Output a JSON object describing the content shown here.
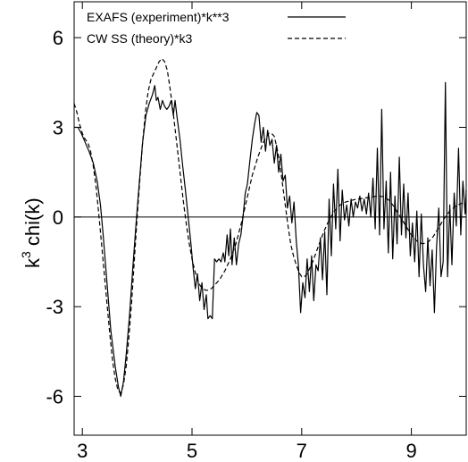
{
  "chart_data": {
    "type": "line",
    "title": "",
    "xlabel": "",
    "ylabel": "k",
    "ylabel_sup": "3",
    "ylabel_rest": " chi(k)",
    "xlim": [
      2.85,
      10
    ],
    "ylim": [
      -7.3,
      7.2
    ],
    "xticks": [
      3,
      5,
      7,
      9
    ],
    "yticks": [
      6,
      3,
      0,
      -3,
      -6
    ],
    "xtick_labels": [
      "3",
      "5",
      "7",
      "9"
    ],
    "ytick_labels": [
      "6",
      "3",
      "0",
      "-3",
      "-6"
    ],
    "zero_line": true,
    "grid": false,
    "legend_position": "top",
    "series": [
      {
        "name": "EXAFS (experiment)*k**3",
        "style": "solid",
        "color": "#000000",
        "points": [
          [
            2.85,
            3.0
          ],
          [
            2.92,
            3.0
          ],
          [
            2.98,
            2.8
          ],
          [
            3.05,
            2.5
          ],
          [
            3.12,
            2.2
          ],
          [
            3.2,
            1.8
          ],
          [
            3.27,
            1.2
          ],
          [
            3.33,
            0.4
          ],
          [
            3.38,
            -0.6
          ],
          [
            3.45,
            -2.2
          ],
          [
            3.52,
            -3.8
          ],
          [
            3.6,
            -5.0
          ],
          [
            3.66,
            -5.7
          ],
          [
            3.7,
            -6.0
          ],
          [
            3.75,
            -5.5
          ],
          [
            3.8,
            -4.6
          ],
          [
            3.86,
            -3.3
          ],
          [
            3.92,
            -1.7
          ],
          [
            3.98,
            -0.2
          ],
          [
            4.04,
            1.2
          ],
          [
            4.1,
            2.5
          ],
          [
            4.16,
            3.4
          ],
          [
            4.22,
            3.8
          ],
          [
            4.28,
            4.1
          ],
          [
            4.32,
            4.4
          ],
          [
            4.35,
            3.9
          ],
          [
            4.38,
            4.0
          ],
          [
            4.42,
            3.6
          ],
          [
            4.46,
            3.9
          ],
          [
            4.5,
            3.7
          ],
          [
            4.54,
            3.6
          ],
          [
            4.58,
            3.7
          ],
          [
            4.62,
            3.9
          ],
          [
            4.66,
            3.4
          ],
          [
            4.69,
            3.9
          ],
          [
            4.73,
            3.3
          ],
          [
            4.78,
            2.6
          ],
          [
            4.83,
            1.7
          ],
          [
            4.88,
            0.9
          ],
          [
            4.93,
            0.0
          ],
          [
            4.98,
            -0.9
          ],
          [
            5.02,
            -1.7
          ],
          [
            5.06,
            -2.4
          ],
          [
            5.1,
            -1.9
          ],
          [
            5.14,
            -2.8
          ],
          [
            5.18,
            -2.2
          ],
          [
            5.22,
            -3.1
          ],
          [
            5.26,
            -2.6
          ],
          [
            5.29,
            -3.4
          ],
          [
            5.33,
            -3.3
          ],
          [
            5.37,
            -3.4
          ],
          [
            5.41,
            -1.4
          ],
          [
            5.45,
            -1.5
          ],
          [
            5.49,
            -1.4
          ],
          [
            5.53,
            -1.5
          ],
          [
            5.57,
            -1.2
          ],
          [
            5.6,
            -1.5
          ],
          [
            5.64,
            -0.6
          ],
          [
            5.67,
            -1.3
          ],
          [
            5.7,
            -0.4
          ],
          [
            5.73,
            -1.6
          ],
          [
            5.77,
            -0.7
          ],
          [
            5.81,
            -1.6
          ],
          [
            5.85,
            -0.9
          ],
          [
            5.89,
            -0.6
          ],
          [
            5.93,
            0.0
          ],
          [
            5.97,
            0.8
          ],
          [
            6.01,
            1.1
          ],
          [
            6.05,
            1.8
          ],
          [
            6.1,
            2.6
          ],
          [
            6.14,
            3.1
          ],
          [
            6.18,
            3.5
          ],
          [
            6.22,
            3.4
          ],
          [
            6.26,
            2.5
          ],
          [
            6.3,
            3.0
          ],
          [
            6.34,
            2.2
          ],
          [
            6.38,
            2.9
          ],
          [
            6.42,
            2.4
          ],
          [
            6.46,
            2.6
          ],
          [
            6.5,
            1.8
          ],
          [
            6.54,
            2.4
          ],
          [
            6.58,
            1.5
          ],
          [
            6.62,
            2.1
          ],
          [
            6.66,
            1.2
          ],
          [
            6.7,
            1.4
          ],
          [
            6.74,
            0.3
          ],
          [
            6.78,
            0.7
          ],
          [
            6.82,
            -0.2
          ],
          [
            6.86,
            0.5
          ],
          [
            6.9,
            -0.8
          ],
          [
            6.94,
            -1.6
          ],
          [
            6.98,
            -3.2
          ],
          [
            7.02,
            -2.2
          ],
          [
            7.06,
            -2.7
          ],
          [
            7.1,
            -1.4
          ],
          [
            7.14,
            -2.5
          ],
          [
            7.18,
            -1.3
          ],
          [
            7.22,
            -2.8
          ],
          [
            7.26,
            -1.6
          ],
          [
            7.3,
            -1.8
          ],
          [
            7.34,
            -0.7
          ],
          [
            7.38,
            -2.1
          ],
          [
            7.42,
            -0.5
          ],
          [
            7.46,
            -2.6
          ],
          [
            7.5,
            0.6
          ],
          [
            7.54,
            -1.3
          ],
          [
            7.58,
            1.1
          ],
          [
            7.62,
            -0.4
          ],
          [
            7.66,
            1.6
          ],
          [
            7.7,
            -0.8
          ],
          [
            7.74,
            0.9
          ],
          [
            7.78,
            -0.1
          ],
          [
            7.82,
            0.4
          ],
          [
            7.86,
            -0.3
          ],
          [
            7.9,
            0.6
          ],
          [
            7.94,
            0.0
          ],
          [
            7.98,
            0.5
          ],
          [
            8.02,
            0.3
          ],
          [
            8.06,
            0.7
          ],
          [
            8.1,
            0.2
          ],
          [
            8.14,
            0.6
          ],
          [
            8.18,
            0.1
          ],
          [
            8.22,
            0.8
          ],
          [
            8.26,
            0.0
          ],
          [
            8.3,
            1.3
          ],
          [
            8.34,
            -0.4
          ],
          [
            8.38,
            2.3
          ],
          [
            8.42,
            -0.6
          ],
          [
            8.46,
            3.6
          ],
          [
            8.5,
            -0.4
          ],
          [
            8.54,
            1.2
          ],
          [
            8.58,
            -1.2
          ],
          [
            8.62,
            1.5
          ],
          [
            8.66,
            -1.4
          ],
          [
            8.7,
            0.7
          ],
          [
            8.74,
            -0.9
          ],
          [
            8.78,
            2.0
          ],
          [
            8.82,
            -0.6
          ],
          [
            8.86,
            1.1
          ],
          [
            8.9,
            -0.7
          ],
          [
            8.94,
            0.8
          ],
          [
            8.98,
            -1.3
          ],
          [
            9.02,
            -0.2
          ],
          [
            9.06,
            -1.5
          ],
          [
            9.1,
            0.2
          ],
          [
            9.14,
            -2.0
          ],
          [
            9.18,
            0.1
          ],
          [
            9.22,
            -1.6
          ],
          [
            9.26,
            -2.5
          ],
          [
            9.3,
            -0.7
          ],
          [
            9.34,
            -2.3
          ],
          [
            9.38,
            -1.1
          ],
          [
            9.42,
            -3.2
          ],
          [
            9.46,
            -1.0
          ],
          [
            9.5,
            0.3
          ],
          [
            9.54,
            -2.0
          ],
          [
            9.58,
            -1.5
          ],
          [
            9.62,
            4.5
          ],
          [
            9.66,
            -2.0
          ],
          [
            9.7,
            0.4
          ],
          [
            9.74,
            -1.6
          ],
          [
            9.78,
            0.8
          ],
          [
            9.82,
            -0.3
          ],
          [
            9.86,
            2.3
          ],
          [
            9.9,
            -0.6
          ],
          [
            9.94,
            1.2
          ],
          [
            9.98,
            0.1
          ],
          [
            10.0,
            0.9
          ]
        ]
      },
      {
        "name": "CW SS (theory)*k3",
        "style": "dashed",
        "color": "#000000",
        "points": [
          [
            2.85,
            3.8
          ],
          [
            2.9,
            3.5
          ],
          [
            2.95,
            3.1
          ],
          [
            3.0,
            2.8
          ],
          [
            3.05,
            2.6
          ],
          [
            3.1,
            2.5
          ],
          [
            3.15,
            2.2
          ],
          [
            3.2,
            1.7
          ],
          [
            3.25,
            1.0
          ],
          [
            3.3,
            0.1
          ],
          [
            3.35,
            -0.9
          ],
          [
            3.4,
            -1.9
          ],
          [
            3.45,
            -2.9
          ],
          [
            3.5,
            -3.9
          ],
          [
            3.55,
            -4.8
          ],
          [
            3.6,
            -5.4
          ],
          [
            3.65,
            -5.8
          ],
          [
            3.7,
            -5.9
          ],
          [
            3.75,
            -5.6
          ],
          [
            3.8,
            -5.0
          ],
          [
            3.85,
            -4.0
          ],
          [
            3.9,
            -2.8
          ],
          [
            3.95,
            -1.4
          ],
          [
            4.0,
            0.0
          ],
          [
            4.05,
            1.3
          ],
          [
            4.1,
            2.5
          ],
          [
            4.15,
            3.5
          ],
          [
            4.2,
            4.2
          ],
          [
            4.25,
            4.6
          ],
          [
            4.3,
            4.8
          ],
          [
            4.35,
            5.0
          ],
          [
            4.4,
            5.2
          ],
          [
            4.45,
            5.3
          ],
          [
            4.5,
            5.2
          ],
          [
            4.55,
            4.9
          ],
          [
            4.6,
            4.3
          ],
          [
            4.65,
            3.6
          ],
          [
            4.7,
            2.8
          ],
          [
            4.75,
            2.0
          ],
          [
            4.8,
            1.2
          ],
          [
            4.85,
            0.4
          ],
          [
            4.9,
            -0.3
          ],
          [
            4.95,
            -0.9
          ],
          [
            5.0,
            -1.4
          ],
          [
            5.05,
            -1.8
          ],
          [
            5.1,
            -2.1
          ],
          [
            5.15,
            -2.3
          ],
          [
            5.2,
            -2.4
          ],
          [
            5.25,
            -2.45
          ],
          [
            5.3,
            -2.45
          ],
          [
            5.35,
            -2.4
          ],
          [
            5.4,
            -2.3
          ],
          [
            5.5,
            -2.1
          ],
          [
            5.6,
            -1.8
          ],
          [
            5.7,
            -1.4
          ],
          [
            5.8,
            -0.9
          ],
          [
            5.9,
            -0.2
          ],
          [
            6.0,
            0.6
          ],
          [
            6.1,
            1.4
          ],
          [
            6.2,
            2.0
          ],
          [
            6.3,
            2.5
          ],
          [
            6.4,
            2.8
          ],
          [
            6.45,
            2.8
          ],
          [
            6.5,
            2.7
          ],
          [
            6.55,
            2.3
          ],
          [
            6.6,
            1.8
          ],
          [
            6.65,
            1.1
          ],
          [
            6.7,
            0.4
          ],
          [
            6.75,
            -0.3
          ],
          [
            6.8,
            -0.9
          ],
          [
            6.85,
            -1.3
          ],
          [
            6.9,
            -1.6
          ],
          [
            6.95,
            -1.85
          ],
          [
            7.0,
            -2.0
          ],
          [
            7.05,
            -2.0
          ],
          [
            7.1,
            -1.9
          ],
          [
            7.2,
            -1.5
          ],
          [
            7.3,
            -1.0
          ],
          [
            7.4,
            -0.5
          ],
          [
            7.5,
            -0.1
          ],
          [
            7.6,
            0.2
          ],
          [
            7.7,
            0.4
          ],
          [
            7.8,
            0.5
          ],
          [
            7.9,
            0.55
          ],
          [
            8.0,
            0.6
          ],
          [
            8.1,
            0.62
          ],
          [
            8.2,
            0.65
          ],
          [
            8.3,
            0.68
          ],
          [
            8.4,
            0.7
          ],
          [
            8.5,
            0.68
          ],
          [
            8.6,
            0.55
          ],
          [
            8.7,
            0.3
          ],
          [
            8.8,
            0.0
          ],
          [
            8.9,
            -0.3
          ],
          [
            9.0,
            -0.6
          ],
          [
            9.1,
            -0.8
          ],
          [
            9.2,
            -0.9
          ],
          [
            9.3,
            -0.85
          ],
          [
            9.4,
            -0.65
          ],
          [
            9.5,
            -0.35
          ],
          [
            9.6,
            -0.05
          ],
          [
            9.7,
            0.2
          ],
          [
            9.8,
            0.35
          ],
          [
            9.9,
            0.45
          ],
          [
            10.0,
            0.5
          ]
        ]
      }
    ]
  }
}
